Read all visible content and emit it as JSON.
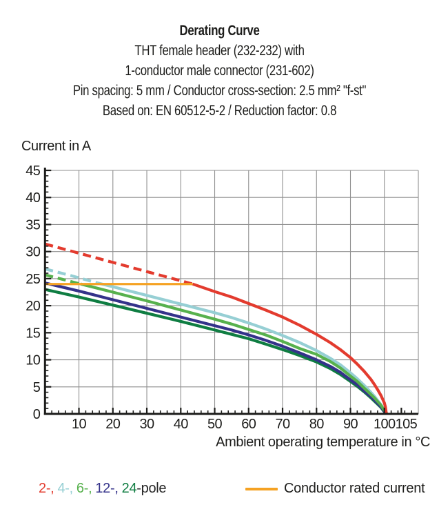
{
  "header": {
    "title": "Derating Curve",
    "subtitle_lines": [
      "THT female header (232-232) with",
      "1-conductor male connector (231-602)"
    ],
    "spec_line": "Pin spacing: 5 mm / Conductor cross-section: 2.5 mm² \"f-st\"",
    "basis_line": "Based on: EN 60512-5-2 / Reduction factor: 0.8"
  },
  "chart_data": {
    "type": "line",
    "title": "Derating Curve",
    "ylabel": "Current in A",
    "xlabel": "Ambient operating temperature in °C",
    "xlim": [
      0,
      110
    ],
    "ylim": [
      0,
      45
    ],
    "x_tick_labels": [
      10,
      20,
      30,
      40,
      50,
      60,
      70,
      80,
      90,
      100,
      105
    ],
    "y_tick_labels": [
      0,
      5,
      10,
      15,
      20,
      25,
      30,
      35,
      40,
      45
    ],
    "x_grid_step": 10,
    "x_minor_step": 2,
    "y_tick_step": 5,
    "y_minor_step": 1,
    "grid": true,
    "legend_position": "bottom",
    "grid_color": "#8f8f8f",
    "axis_color": "#1d1d1b",
    "series": [
      {
        "name": "4-pole",
        "color": "#96cfd4",
        "dashed_until_x": 15.5,
        "points": [
          [
            0,
            26.8
          ],
          [
            8,
            25.5
          ],
          [
            15.5,
            24.2
          ],
          [
            20,
            23.5
          ],
          [
            30,
            21.9
          ],
          [
            40,
            20.3
          ],
          [
            50,
            18.7
          ],
          [
            55,
            17.8
          ],
          [
            60,
            16.8
          ],
          [
            65,
            15.7
          ],
          [
            70,
            14.5
          ],
          [
            75,
            13.2
          ],
          [
            80,
            11.7
          ],
          [
            84,
            10.3
          ],
          [
            87,
            9.1
          ],
          [
            90,
            7.6
          ],
          [
            92,
            6.5
          ],
          [
            94,
            5.3
          ],
          [
            96,
            4.0
          ],
          [
            97,
            3.3
          ],
          [
            98,
            2.5
          ],
          [
            99,
            1.7
          ],
          [
            99.7,
            0.9
          ],
          [
            100.4,
            0
          ]
        ]
      },
      {
        "name": "24-pole",
        "color": "#0f7d42",
        "dashed_until_x": 0,
        "points": [
          [
            0,
            23.0
          ],
          [
            10,
            21.6
          ],
          [
            20,
            20.1
          ],
          [
            30,
            18.6
          ],
          [
            40,
            17.1
          ],
          [
            50,
            15.5
          ],
          [
            55,
            14.7
          ],
          [
            60,
            13.9
          ],
          [
            65,
            12.9
          ],
          [
            70,
            11.9
          ],
          [
            75,
            10.8
          ],
          [
            80,
            9.6
          ],
          [
            84,
            8.4
          ],
          [
            87,
            7.3
          ],
          [
            90,
            6.0
          ],
          [
            92,
            5.1
          ],
          [
            94,
            4.1
          ],
          [
            96,
            3.0
          ],
          [
            97,
            2.4
          ],
          [
            98,
            1.8
          ],
          [
            99,
            1.2
          ],
          [
            99.7,
            0.6
          ],
          [
            100.6,
            0
          ]
        ]
      },
      {
        "name": "12-pole",
        "color": "#34328a",
        "dashed_until_x": 0,
        "points": [
          [
            0,
            24.2
          ],
          [
            10,
            22.7
          ],
          [
            20,
            21.1
          ],
          [
            30,
            19.5
          ],
          [
            40,
            17.9
          ],
          [
            50,
            16.3
          ],
          [
            55,
            15.5
          ],
          [
            60,
            14.6
          ],
          [
            65,
            13.6
          ],
          [
            70,
            12.5
          ],
          [
            75,
            11.3
          ],
          [
            80,
            10.0
          ],
          [
            84,
            8.8
          ],
          [
            87,
            7.7
          ],
          [
            90,
            6.3
          ],
          [
            92,
            5.4
          ],
          [
            94,
            4.3
          ],
          [
            96,
            3.2
          ],
          [
            97,
            2.6
          ],
          [
            98,
            2.0
          ],
          [
            99,
            1.3
          ],
          [
            99.7,
            0.7
          ],
          [
            100.5,
            0
          ]
        ]
      },
      {
        "name": "6-pole",
        "color": "#57b14d",
        "dashed_until_x": 10.5,
        "points": [
          [
            0,
            25.7
          ],
          [
            5,
            24.9
          ],
          [
            10.5,
            24.0
          ],
          [
            20,
            22.5
          ],
          [
            30,
            20.9
          ],
          [
            40,
            19.2
          ],
          [
            50,
            17.5
          ],
          [
            55,
            16.6
          ],
          [
            60,
            15.6
          ],
          [
            65,
            14.6
          ],
          [
            70,
            13.4
          ],
          [
            75,
            12.1
          ],
          [
            80,
            11.0
          ],
          [
            84,
            9.7
          ],
          [
            87,
            8.5
          ],
          [
            90,
            7.0
          ],
          [
            92,
            6.0
          ],
          [
            94,
            4.8
          ],
          [
            96,
            3.6
          ],
          [
            97,
            3.0
          ],
          [
            98,
            2.3
          ],
          [
            99,
            1.6
          ],
          [
            99.8,
            0.8
          ],
          [
            100.8,
            0
          ]
        ]
      },
      {
        "name": "2-pole",
        "color": "#e33b2e",
        "dashed_until_x": 43.5,
        "points": [
          [
            0,
            31.4
          ],
          [
            10,
            29.7
          ],
          [
            20,
            28.0
          ],
          [
            30,
            26.3
          ],
          [
            40,
            24.6
          ],
          [
            43.5,
            24.0
          ],
          [
            50,
            22.6
          ],
          [
            55,
            21.6
          ],
          [
            60,
            20.4
          ],
          [
            65,
            19.2
          ],
          [
            70,
            17.9
          ],
          [
            75,
            16.4
          ],
          [
            80,
            14.7
          ],
          [
            84,
            13.2
          ],
          [
            87,
            11.9
          ],
          [
            90,
            10.4
          ],
          [
            92,
            9.2
          ],
          [
            94,
            7.9
          ],
          [
            96,
            6.4
          ],
          [
            97,
            5.5
          ],
          [
            98,
            4.5
          ],
          [
            99,
            3.4
          ],
          [
            99.5,
            2.7
          ],
          [
            100,
            2.0
          ],
          [
            100.3,
            1.3
          ],
          [
            100.6,
            0
          ]
        ]
      }
    ],
    "rated_current": {
      "y": 24,
      "x_start": 0,
      "x_end": 43.5,
      "color": "#f5a223",
      "label": "Conductor rated current"
    }
  },
  "legend": {
    "pole_items": [
      {
        "text": "2-,",
        "color": "#e33b2e"
      },
      {
        "text": "4-,",
        "color": "#96cfd4"
      },
      {
        "text": "6-,",
        "color": "#57b14d"
      },
      {
        "text": "12-,",
        "color": "#34328a"
      },
      {
        "text": "24",
        "color": "#0f7d42"
      }
    ],
    "pole_suffix": {
      "text": "-pole",
      "color": "#262626"
    },
    "rated": {
      "label": "Conductor rated current",
      "color": "#f5a223"
    }
  }
}
